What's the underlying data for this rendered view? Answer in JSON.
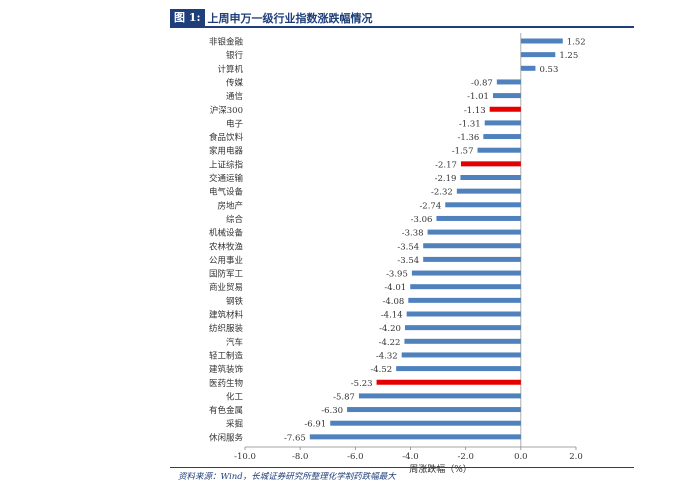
{
  "figure": {
    "label": "图 1:",
    "title": "上周申万一级行业指数涨跌幅情况",
    "source": "资料来源：Wind，长城证券研究所整理化学制药跌幅最大"
  },
  "colors": {
    "normal_bar": "#4f81bd",
    "highlight_bar": "#e50000",
    "header": "#1f3f7a"
  },
  "chart_data": {
    "type": "bar",
    "orientation": "horizontal",
    "title": "上周申万一级行业指数涨跌幅情况",
    "xlabel": "周涨跌幅（%）",
    "ylabel": "",
    "xlim": [
      -10.0,
      2.0
    ],
    "xticks": [
      "-10.0",
      "-8.0",
      "-6.0",
      "-4.0",
      "-2.0",
      "0.0",
      "2.0"
    ],
    "xtick_values": [
      -10,
      -8,
      -6,
      -4,
      -2,
      0,
      2
    ],
    "categories": [
      "非银金融",
      "银行",
      "计算机",
      "传媒",
      "通信",
      "沪深300",
      "电子",
      "食品饮料",
      "家用电器",
      "上证综指",
      "交通运输",
      "电气设备",
      "房地产",
      "综合",
      "机械设备",
      "农林牧渔",
      "公用事业",
      "国防军工",
      "商业贸易",
      "钢铁",
      "建筑材料",
      "纺织服装",
      "汽车",
      "轻工制造",
      "建筑装饰",
      "医药生物",
      "化工",
      "有色金属",
      "采掘",
      "休闲服务"
    ],
    "values": [
      1.52,
      1.25,
      0.53,
      -0.87,
      -1.01,
      -1.13,
      -1.31,
      -1.36,
      -1.57,
      -2.17,
      -2.19,
      -2.32,
      -2.74,
      -3.06,
      -3.38,
      -3.54,
      -3.54,
      -3.95,
      -4.01,
      -4.08,
      -4.14,
      -4.2,
      -4.22,
      -4.32,
      -4.52,
      -5.23,
      -5.87,
      -6.3,
      -6.91,
      -7.65
    ],
    "labels": [
      "1.52",
      "1.25",
      "0.53",
      "-0.87",
      "-1.01",
      "-1.13",
      "-1.31",
      "-1.36",
      "-1.57",
      "-2.17",
      "-2.19",
      "-2.32",
      "-2.74",
      "-3.06",
      "-3.38",
      "-3.54",
      "-3.54",
      "-3.95",
      "-4.01",
      "-4.08",
      "-4.14",
      "-4.20",
      "-4.22",
      "-4.32",
      "-4.52",
      "-5.23",
      "-5.87",
      "-6.30",
      "-6.91",
      "-7.65"
    ],
    "highlighted": [
      "沪深300",
      "上证综指",
      "医药生物"
    ]
  }
}
